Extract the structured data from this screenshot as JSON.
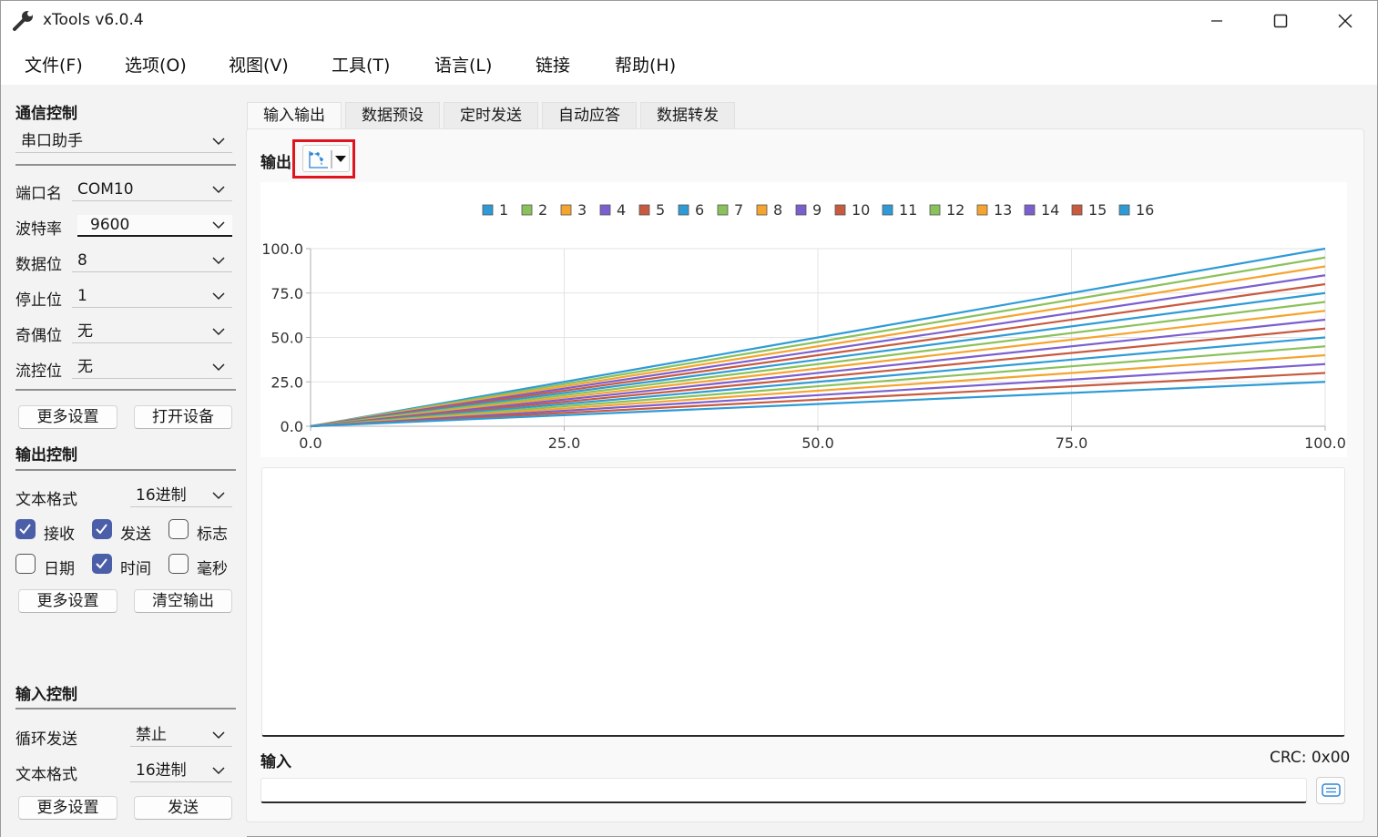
{
  "window": {
    "title": "xTools v6.0.4"
  },
  "menu": [
    "文件(F)",
    "选项(O)",
    "视图(V)",
    "工具(T)",
    "语言(L)",
    "链接",
    "帮助(H)"
  ],
  "comm": {
    "title": "通信控制",
    "mode": "串口助手",
    "port_label": "端口名",
    "port_value": "COM10",
    "baud_label": "波特率",
    "baud_value": "9600",
    "data_label": "数据位",
    "data_value": "8",
    "stop_label": "停止位",
    "stop_value": "1",
    "parity_label": "奇偶位",
    "parity_value": "无",
    "flow_label": "流控位",
    "flow_value": "无",
    "more_button": "更多设置",
    "open_button": "打开设备"
  },
  "output_ctrl": {
    "title": "输出控制",
    "format_label": "文本格式",
    "format_value": "16进制",
    "checks": [
      {
        "label": "接收",
        "checked": true
      },
      {
        "label": "发送",
        "checked": true
      },
      {
        "label": "标志",
        "checked": false
      },
      {
        "label": "日期",
        "checked": false
      },
      {
        "label": "时间",
        "checked": true
      },
      {
        "label": "毫秒",
        "checked": false
      }
    ],
    "more_button": "更多设置",
    "clear_button": "清空输出"
  },
  "input_ctrl": {
    "title": "输入控制",
    "loop_label": "循环发送",
    "loop_value": "禁止",
    "format_label": "文本格式",
    "format_value": "16进制",
    "more_button": "更多设置",
    "send_button": "发送"
  },
  "tabs": [
    "输入输出",
    "数据预设",
    "定时发送",
    "自动应答",
    "数据转发"
  ],
  "main": {
    "output_label": "输出",
    "input_label": "输入",
    "crc": "CRC: 0x00",
    "input_value": ""
  },
  "icons": {
    "app": "wrench-icon",
    "chart_toggle": "line-chart-icon",
    "dropdown": "triangle-down-icon",
    "send_format": "text-lines-icon"
  },
  "chart_data": {
    "type": "line",
    "x": [
      0,
      100
    ],
    "series": [
      {
        "name": "1",
        "color": "#2e9bd6",
        "values": [
          0,
          100
        ]
      },
      {
        "name": "2",
        "color": "#8bc15a",
        "values": [
          0,
          95
        ]
      },
      {
        "name": "3",
        "color": "#f5a42e",
        "values": [
          0,
          90
        ]
      },
      {
        "name": "4",
        "color": "#7b5fcf",
        "values": [
          0,
          85
        ]
      },
      {
        "name": "5",
        "color": "#c85a3f",
        "values": [
          0,
          80
        ]
      },
      {
        "name": "6",
        "color": "#2e9bd6",
        "values": [
          0,
          75
        ]
      },
      {
        "name": "7",
        "color": "#8bc15a",
        "values": [
          0,
          70
        ]
      },
      {
        "name": "8",
        "color": "#f5a42e",
        "values": [
          0,
          65
        ]
      },
      {
        "name": "9",
        "color": "#7b5fcf",
        "values": [
          0,
          60
        ]
      },
      {
        "name": "10",
        "color": "#c85a3f",
        "values": [
          0,
          55
        ]
      },
      {
        "name": "11",
        "color": "#2e9bd6",
        "values": [
          0,
          50
        ]
      },
      {
        "name": "12",
        "color": "#8bc15a",
        "values": [
          0,
          45
        ]
      },
      {
        "name": "13",
        "color": "#f5a42e",
        "values": [
          0,
          40
        ]
      },
      {
        "name": "14",
        "color": "#7b5fcf",
        "values": [
          0,
          35
        ]
      },
      {
        "name": "15",
        "color": "#c85a3f",
        "values": [
          0,
          30
        ]
      },
      {
        "name": "16",
        "color": "#2e9bd6",
        "values": [
          0,
          25
        ]
      }
    ],
    "xlim": [
      0,
      100
    ],
    "ylim": [
      0,
      100
    ],
    "xticks": [
      "0.0",
      "25.0",
      "50.0",
      "75.0",
      "100.0"
    ],
    "yticks": [
      "0.0",
      "25.0",
      "50.0",
      "75.0",
      "100.0"
    ],
    "title": "",
    "xlabel": "",
    "ylabel": "",
    "grid": true,
    "legend": "top"
  }
}
